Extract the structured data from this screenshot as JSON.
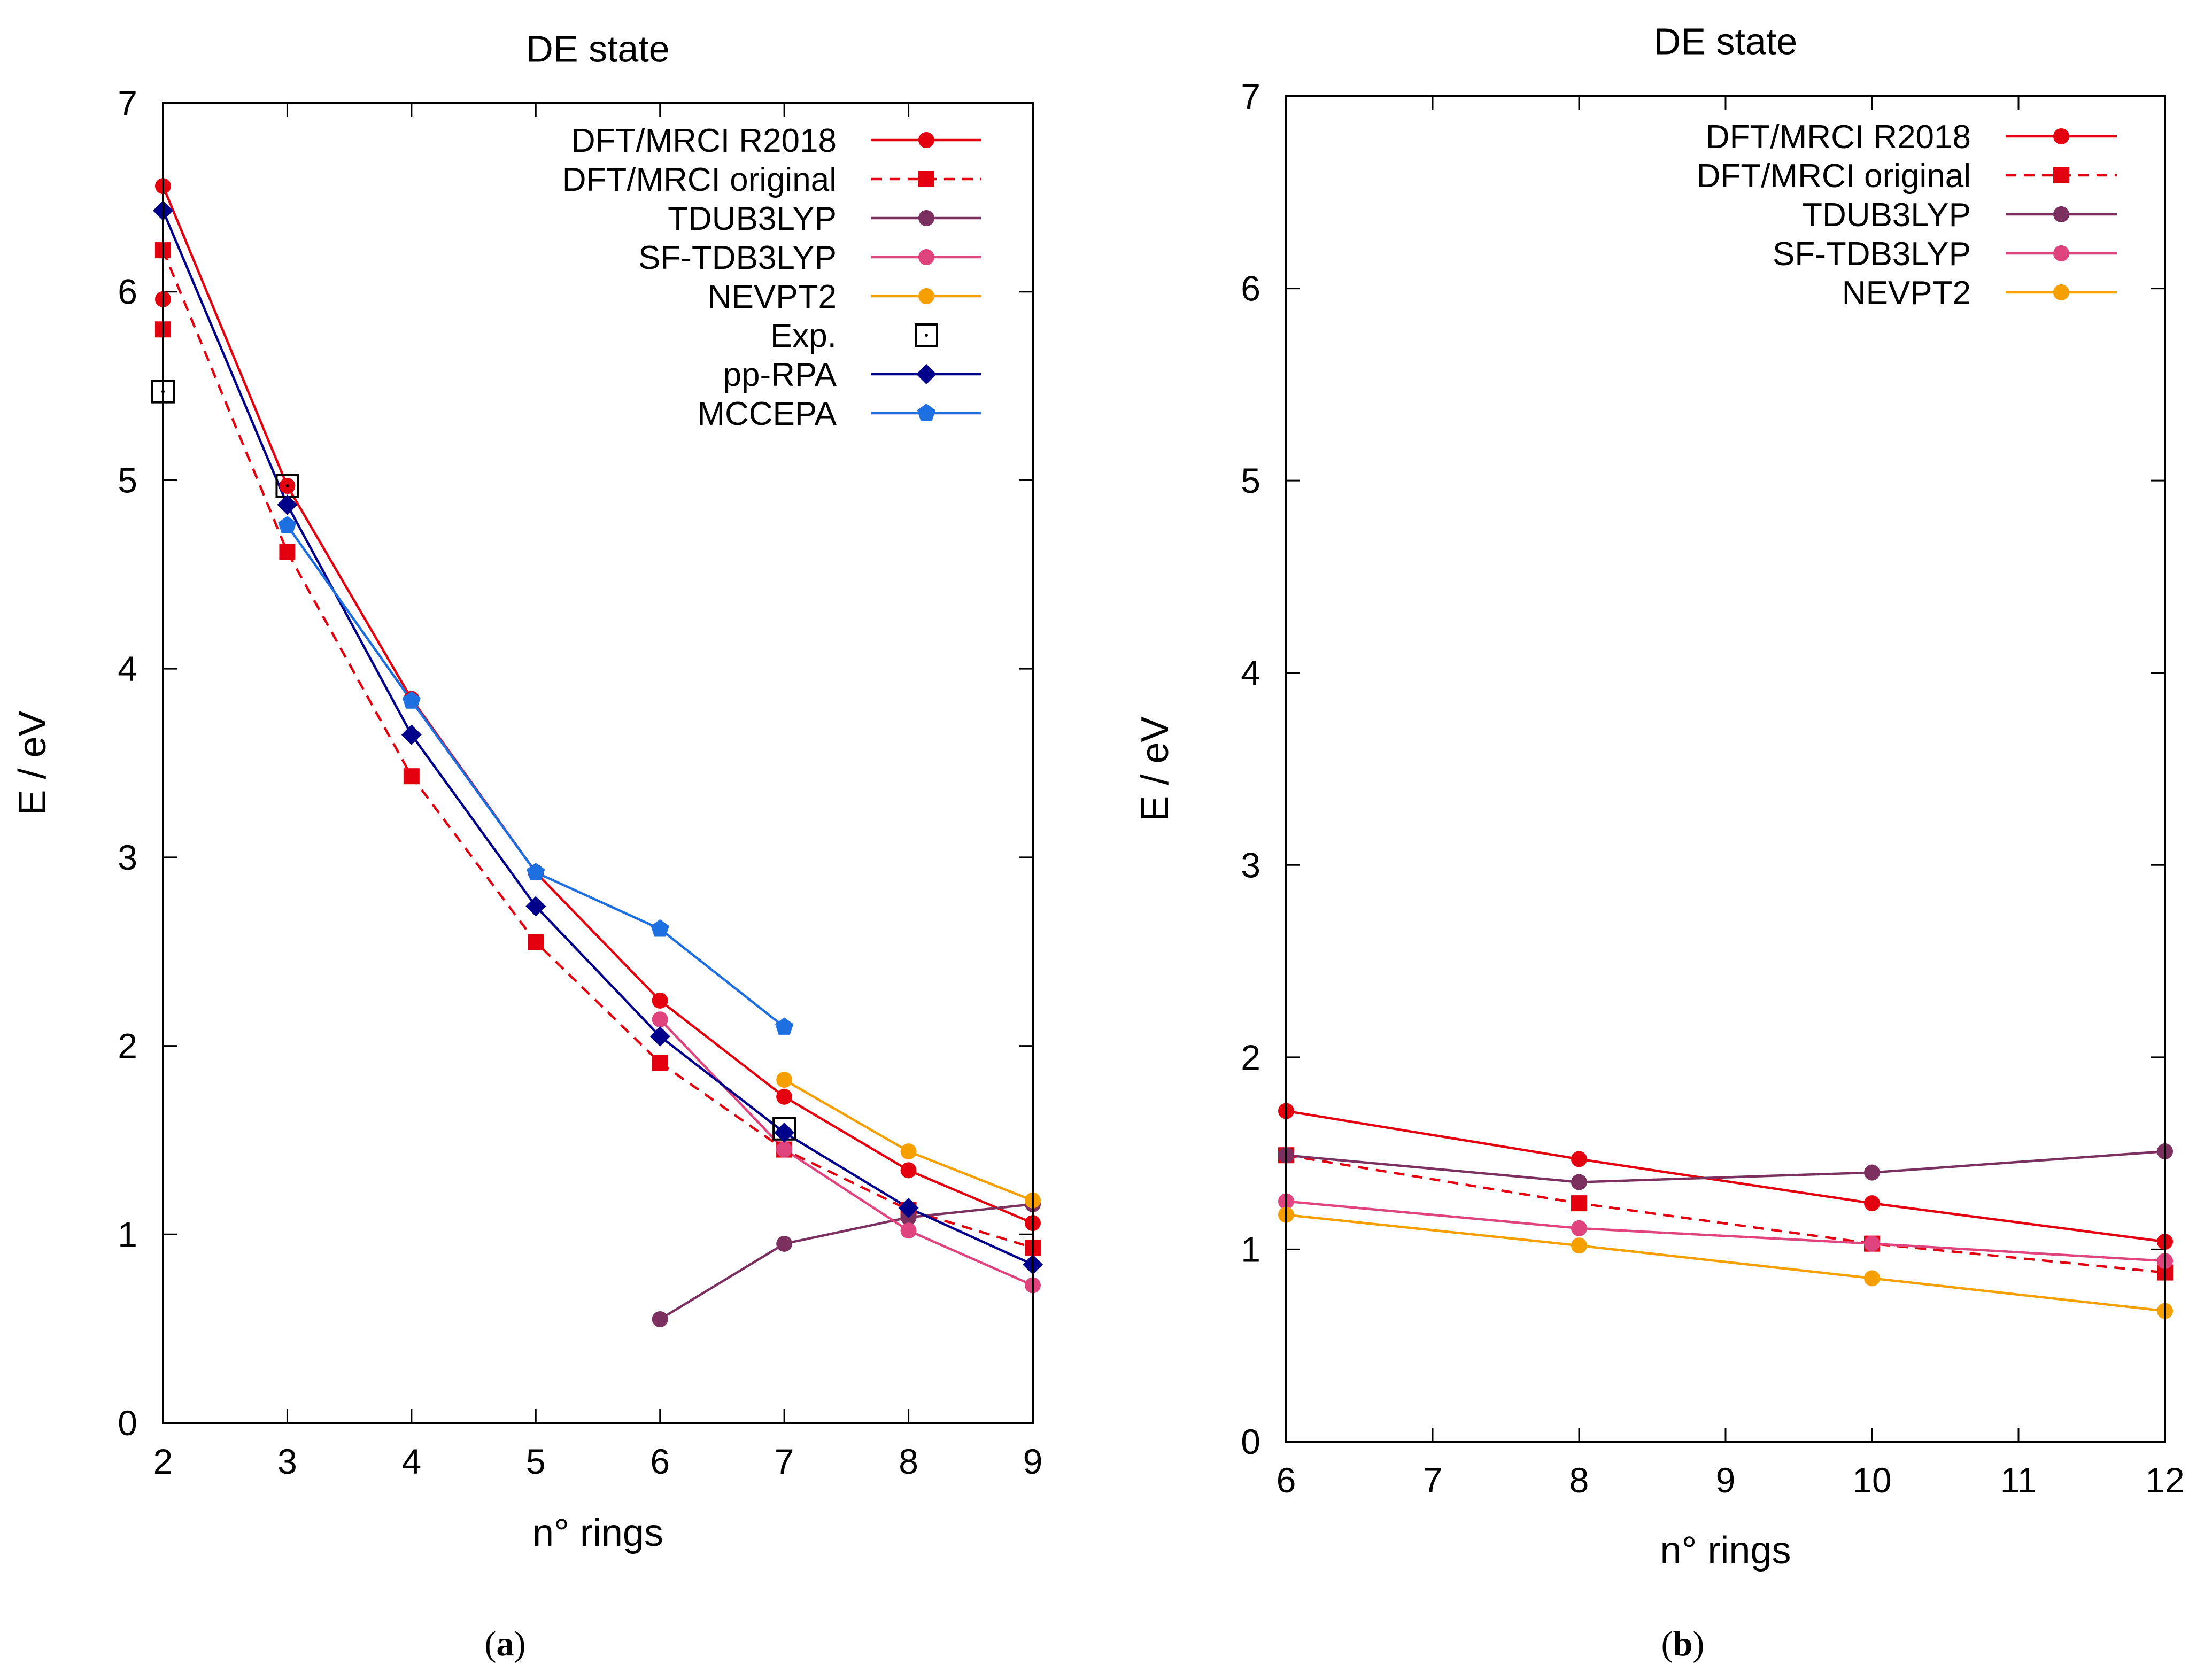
{
  "chart_data": [
    {
      "id": "a",
      "type": "line",
      "title": "DE state",
      "xlabel": "n° rings",
      "ylabel": "E / eV",
      "xlim": [
        2,
        9
      ],
      "ylim": [
        0,
        7
      ],
      "xticks": [
        2,
        3,
        4,
        5,
        6,
        7,
        8,
        9
      ],
      "yticks": [
        0,
        1,
        2,
        3,
        4,
        5,
        6,
        7
      ],
      "caption": {
        "pre": "(",
        "letter": "a",
        "post": ")"
      },
      "legend_position": "top-right",
      "series": [
        {
          "name": "DFT/MRCI R2018",
          "color": "#e3000f",
          "marker": "circle",
          "dash": false,
          "points": [
            [
              2,
              6.56
            ],
            [
              3,
              4.97
            ],
            [
              4,
              3.84
            ],
            [
              5,
              2.92
            ],
            [
              6,
              2.24
            ],
            [
              7,
              1.73
            ],
            [
              8,
              1.34
            ],
            [
              9,
              1.06
            ]
          ]
        },
        {
          "name": "DFT/MRCI original",
          "color": "#e3000f",
          "marker": "square",
          "dash": true,
          "points": [
            [
              2,
              6.22
            ],
            [
              3,
              4.62
            ],
            [
              4,
              3.43
            ],
            [
              5,
              2.55
            ],
            [
              6,
              1.91
            ],
            [
              7,
              1.45
            ],
            [
              8,
              1.13
            ],
            [
              9,
              0.93
            ]
          ]
        },
        {
          "name": "TDUB3LYP",
          "color": "#7b3060",
          "marker": "circle",
          "dash": false,
          "points": [
            [
              6,
              0.55
            ],
            [
              7,
              0.95
            ],
            [
              8,
              1.09
            ],
            [
              9,
              1.16
            ]
          ]
        },
        {
          "name": "SF-TDB3LYP",
          "color": "#e0447e",
          "marker": "circle",
          "dash": false,
          "points": [
            [
              6,
              2.14
            ],
            [
              7,
              1.45
            ],
            [
              8,
              1.02
            ],
            [
              9,
              0.73
            ]
          ]
        },
        {
          "name": "NEVPT2",
          "color": "#f5a000",
          "marker": "circle",
          "dash": false,
          "points": [
            [
              7,
              1.82
            ],
            [
              8,
              1.44
            ],
            [
              9,
              1.18
            ]
          ]
        },
        {
          "name": "Exp.",
          "color": "#000000",
          "marker": "open-square-dot",
          "line": false,
          "points": [
            [
              2,
              5.47
            ],
            [
              3,
              4.97
            ],
            [
              7,
              1.56
            ]
          ]
        },
        {
          "name": "pp-RPA",
          "color": "#00008b",
          "marker": "diamond",
          "dash": false,
          "points": [
            [
              2,
              6.43
            ],
            [
              3,
              4.87
            ],
            [
              4,
              3.65
            ],
            [
              5,
              2.74
            ],
            [
              6,
              2.05
            ],
            [
              7,
              1.54
            ],
            [
              8,
              1.14
            ],
            [
              9,
              0.84
            ]
          ]
        },
        {
          "name": "MCCEPA",
          "color": "#1e6fe0",
          "marker": "pentagon",
          "dash": false,
          "points": [
            [
              3,
              4.76
            ],
            [
              4,
              3.83
            ],
            [
              5,
              2.92
            ],
            [
              6,
              2.62
            ],
            [
              7,
              2.1
            ]
          ]
        },
        {
          "name": "",
          "color": "#e3000f",
          "marker": "circle",
          "line": false,
          "legend": false,
          "points": [
            [
              2,
              5.96
            ]
          ]
        },
        {
          "name": "",
          "color": "#e3000f",
          "marker": "square",
          "line": false,
          "legend": false,
          "points": [
            [
              2,
              5.8
            ]
          ]
        }
      ]
    },
    {
      "id": "b",
      "type": "line",
      "title": "DE state",
      "xlabel": "n° rings",
      "ylabel": "E / eV",
      "xlim": [
        6,
        12
      ],
      "ylim": [
        0,
        7
      ],
      "xticks": [
        6,
        7,
        8,
        9,
        10,
        11,
        12
      ],
      "yticks": [
        0,
        1,
        2,
        3,
        4,
        5,
        6,
        7
      ],
      "caption": {
        "pre": "(",
        "letter": "b",
        "post": ")"
      },
      "legend_position": "top-right",
      "series": [
        {
          "name": "DFT/MRCI R2018",
          "color": "#e3000f",
          "marker": "circle",
          "dash": false,
          "points": [
            [
              6,
              1.72
            ],
            [
              8,
              1.47
            ],
            [
              10,
              1.24
            ],
            [
              12,
              1.04
            ]
          ]
        },
        {
          "name": "DFT/MRCI original",
          "color": "#e3000f",
          "marker": "square",
          "dash": true,
          "points": [
            [
              6,
              1.49
            ],
            [
              8,
              1.24
            ],
            [
              10,
              1.03
            ],
            [
              12,
              0.88
            ]
          ]
        },
        {
          "name": "TDUB3LYP",
          "color": "#7b3060",
          "marker": "circle",
          "dash": false,
          "points": [
            [
              6,
              1.49
            ],
            [
              8,
              1.35
            ],
            [
              10,
              1.4
            ],
            [
              12,
              1.51
            ]
          ]
        },
        {
          "name": "SF-TDB3LYP",
          "color": "#e0447e",
          "marker": "circle",
          "dash": false,
          "points": [
            [
              6,
              1.25
            ],
            [
              8,
              1.11
            ],
            [
              10,
              1.03
            ],
            [
              12,
              0.94
            ]
          ]
        },
        {
          "name": "NEVPT2",
          "color": "#f5a000",
          "marker": "circle",
          "dash": false,
          "points": [
            [
              6,
              1.18
            ],
            [
              8,
              1.02
            ],
            [
              10,
              0.85
            ],
            [
              12,
              0.68
            ]
          ]
        }
      ]
    }
  ]
}
